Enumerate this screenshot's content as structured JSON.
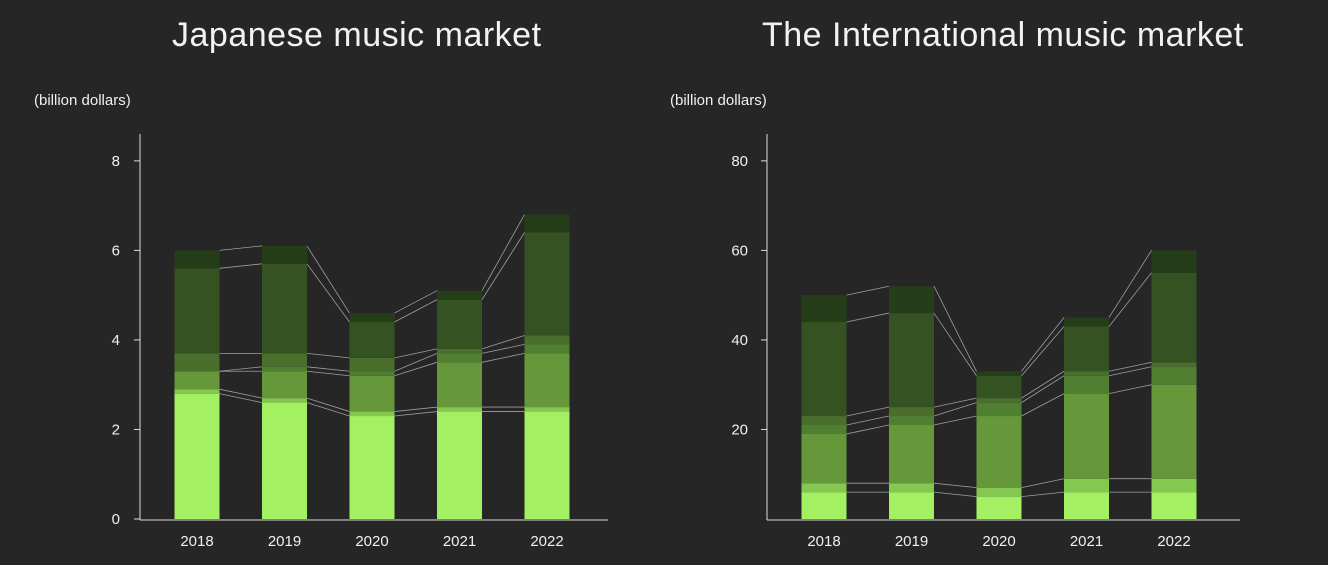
{
  "colors": {
    "background": "#262626",
    "segments": [
      "#a3f163",
      "#84c84f",
      "#66983b",
      "#507f32",
      "#4a6f2d",
      "#355222",
      "#263d19"
    ],
    "axis": "#dcdcdc",
    "connector": "#bdbdbd"
  },
  "chart_data": [
    {
      "type": "bar",
      "stacked": true,
      "title": "Japanese music market",
      "unit": "(billion dollars)",
      "categories": [
        "2018",
        "2019",
        "2020",
        "2021",
        "2022"
      ],
      "ylim": [
        0,
        8.6
      ],
      "yticks": [
        0,
        2,
        4,
        6,
        8
      ],
      "ytick_labels": [
        "0",
        "2",
        "4",
        "6",
        "8"
      ],
      "grid": false,
      "legend": "none",
      "series": [
        {
          "values": [
            2.8,
            2.6,
            2.3,
            2.4,
            2.4
          ]
        },
        {
          "values": [
            0.1,
            0.1,
            0.1,
            0.1,
            0.1
          ]
        },
        {
          "values": [
            0.4,
            0.6,
            0.8,
            1.0,
            1.2
          ]
        },
        {
          "values": [
            0.0,
            0.1,
            0.1,
            0.2,
            0.2
          ]
        },
        {
          "values": [
            0.4,
            0.3,
            0.3,
            0.1,
            0.2
          ]
        },
        {
          "values": [
            1.9,
            2.0,
            0.8,
            1.1,
            2.3
          ]
        },
        {
          "values": [
            0.4,
            0.4,
            0.2,
            0.2,
            0.4
          ]
        }
      ]
    },
    {
      "type": "bar",
      "stacked": true,
      "title": "The International music market",
      "unit": "(billion dollars)",
      "categories": [
        "2018",
        "2019",
        "2020",
        "2021",
        "2022"
      ],
      "ylim": [
        0,
        86
      ],
      "yticks": [
        20,
        40,
        60,
        80
      ],
      "ytick_labels": [
        "20",
        "40",
        "60",
        "80"
      ],
      "grid": false,
      "legend": "none",
      "series": [
        {
          "values": [
            6,
            6,
            5,
            6,
            6
          ]
        },
        {
          "values": [
            2,
            2,
            2,
            3,
            3
          ]
        },
        {
          "values": [
            11,
            13,
            16,
            19,
            21
          ]
        },
        {
          "values": [
            2,
            2,
            3,
            4,
            4
          ]
        },
        {
          "values": [
            2,
            2,
            1,
            1,
            1
          ]
        },
        {
          "values": [
            21,
            21,
            5,
            10,
            20
          ]
        },
        {
          "values": [
            6,
            6,
            1,
            2,
            5
          ]
        }
      ]
    }
  ]
}
